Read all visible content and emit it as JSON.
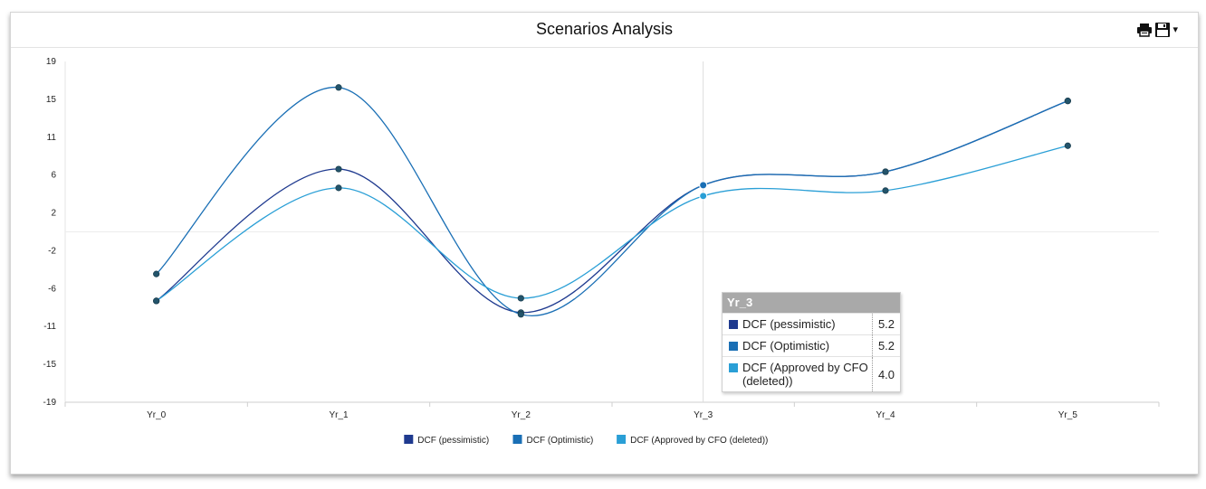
{
  "chart_data": {
    "type": "line",
    "title": "Scenarios Analysis",
    "categories": [
      "Yr_0",
      "Yr_1",
      "Yr_2",
      "Yr_3",
      "Yr_4",
      "Yr_5"
    ],
    "yticks": [
      "19",
      "15",
      "11",
      "6",
      "2",
      "-2",
      "-6",
      "-11",
      "-15",
      "-19"
    ],
    "ylim": [
      -19,
      19
    ],
    "series": [
      {
        "name": "DCF (pessimistic)",
        "color": "#1f3a8f",
        "values": [
          -7.7,
          7.0,
          -9.0,
          5.2,
          6.7,
          14.6
        ]
      },
      {
        "name": "DCF (Optimistic)",
        "color": "#1a6fb5",
        "values": [
          -4.7,
          16.1,
          -9.2,
          5.2,
          6.7,
          14.6
        ]
      },
      {
        "name": "DCF (Approved by CFO (deleted))",
        "color": "#2a9fd6",
        "values": [
          -7.7,
          4.9,
          -7.4,
          4.0,
          4.6,
          9.6
        ]
      }
    ],
    "crosshair_category": "Yr_3",
    "grid": false,
    "legend": "bottom-center"
  },
  "tooltip": {
    "title": "Yr_3",
    "rows": [
      {
        "label": "DCF (pessimistic)",
        "value": "5.2",
        "color": "#1f3a8f"
      },
      {
        "label": "DCF (Optimistic)",
        "value": "5.2",
        "color": "#1a6fb5"
      },
      {
        "label": "DCF (Approved by CFO (deleted))",
        "value": "4.0",
        "color": "#2a9fd6"
      }
    ]
  },
  "toolbar": {
    "print_icon": "printer-icon",
    "save_icon": "floppy-disk-icon",
    "menu_caret": "▾"
  }
}
